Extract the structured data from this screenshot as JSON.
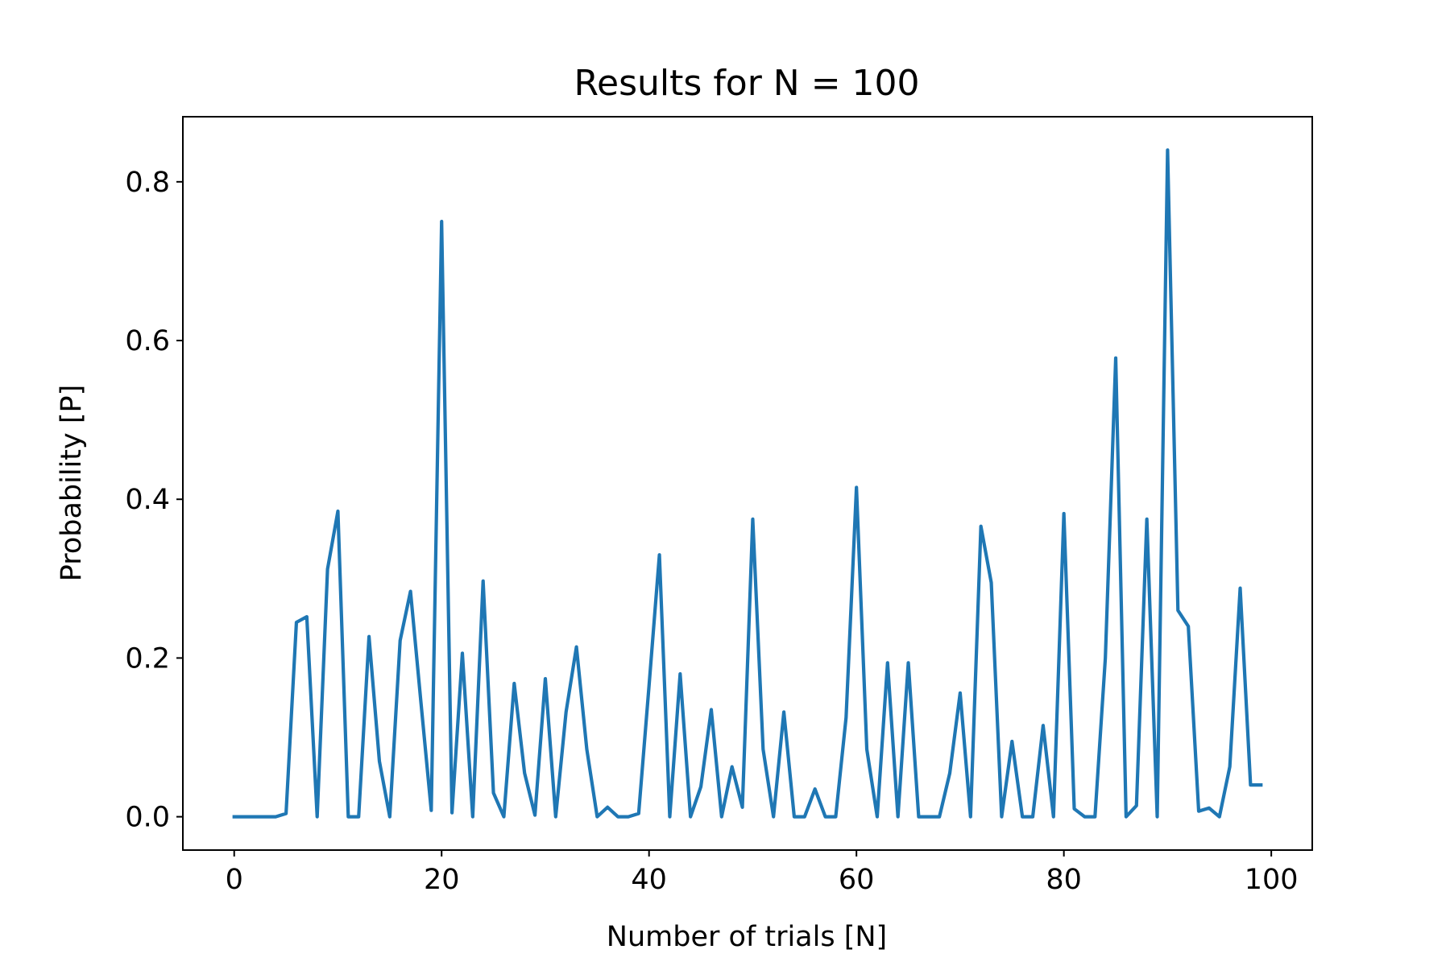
{
  "chart_data": {
    "type": "line",
    "title": "Results for N = 100",
    "xlabel": "Number of trials [N]",
    "ylabel": "Probability [P]",
    "xlim": [
      -4.95,
      103.95
    ],
    "ylim": [
      -0.042,
      0.882
    ],
    "xticks": [
      0,
      20,
      40,
      60,
      80,
      100
    ],
    "xtick_labels": [
      "0",
      "20",
      "40",
      "60",
      "80",
      "100"
    ],
    "yticks": [
      0.0,
      0.2,
      0.4,
      0.6,
      0.8
    ],
    "ytick_labels": [
      "0.0",
      "0.2",
      "0.4",
      "0.6",
      "0.8"
    ],
    "grid": false,
    "legend": false,
    "line_color": "#1f77b4",
    "series": [
      {
        "x": [
          0,
          1,
          2,
          3,
          4,
          5,
          6,
          7,
          8,
          9,
          10,
          11,
          12,
          13,
          14,
          15,
          16,
          17,
          18,
          19,
          20,
          21,
          22,
          23,
          24,
          25,
          26,
          27,
          28,
          29,
          30,
          31,
          32,
          33,
          34,
          35,
          36,
          37,
          38,
          39,
          40,
          41,
          42,
          43,
          44,
          45,
          46,
          47,
          48,
          49,
          50,
          51,
          52,
          53,
          54,
          55,
          56,
          57,
          58,
          59,
          60,
          61,
          62,
          63,
          64,
          65,
          66,
          67,
          68,
          69,
          70,
          71,
          72,
          73,
          74,
          75,
          76,
          77,
          78,
          79,
          80,
          81,
          82,
          83,
          84,
          85,
          86,
          87,
          88,
          89,
          90,
          91,
          92,
          93,
          94,
          95,
          96,
          97,
          98,
          99
        ],
        "values": [
          0.0,
          0.0,
          0.0,
          0.0,
          0.0,
          0.004,
          0.245,
          0.252,
          0.0,
          0.312,
          0.385,
          0.0,
          0.0,
          0.227,
          0.07,
          0.0,
          0.222,
          0.284,
          0.145,
          0.008,
          0.75,
          0.005,
          0.206,
          0.0,
          0.297,
          0.03,
          0.0,
          0.168,
          0.055,
          0.002,
          0.174,
          0.0,
          0.132,
          0.214,
          0.085,
          0.0,
          0.012,
          0.0,
          0.0,
          0.004,
          0.165,
          0.33,
          0.0,
          0.18,
          0.0,
          0.038,
          0.135,
          0.0,
          0.063,
          0.012,
          0.375,
          0.085,
          0.0,
          0.132,
          0.0,
          0.0,
          0.035,
          0.0,
          0.0,
          0.125,
          0.415,
          0.085,
          0.0,
          0.194,
          0.0,
          0.194,
          0.0,
          0.0,
          0.0,
          0.055,
          0.156,
          0.0,
          0.366,
          0.295,
          0.0,
          0.095,
          0.0,
          0.0,
          0.115,
          0.0,
          0.382,
          0.01,
          0.0,
          0.0,
          0.2,
          0.578,
          0.0,
          0.014,
          0.375,
          0.0,
          0.84,
          0.26,
          0.24,
          0.007,
          0.011,
          0.0,
          0.063,
          0.288,
          0.04,
          0.04
        ]
      }
    ]
  }
}
